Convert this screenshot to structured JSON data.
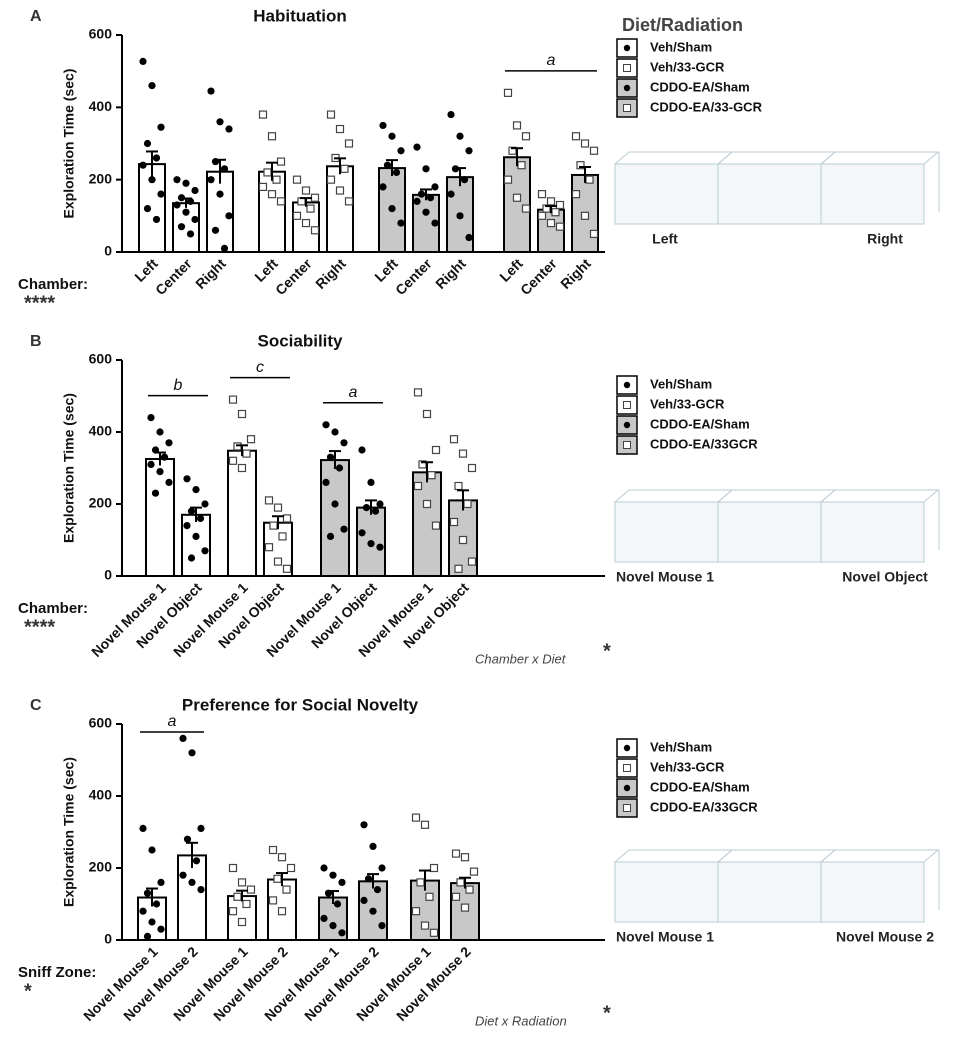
{
  "chart_data": [
    {
      "type": "bar",
      "panel": "A",
      "title": "Habituation",
      "ylabel": "Exploration Time (sec)",
      "ylim": [
        0,
        600
      ],
      "yticks": [
        0,
        200,
        400,
        600
      ],
      "factor": "Chamber:",
      "factor_stars": "****",
      "legend_title": "Diet/Radiation",
      "categories": [
        "Left",
        "Center",
        "Right"
      ],
      "diagram_labels": [
        "Left",
        "Right"
      ],
      "series": [
        {
          "name": "Veh/Sham",
          "color": "#ffffff",
          "marker": "circle",
          "values": [
            243,
            135,
            222
          ],
          "errors": [
            35,
            13,
            33
          ],
          "points": [
            [
              527,
              460,
              345,
              300,
              260,
              240,
              200,
              160,
              120,
              90
            ],
            [
              200,
              190,
              170,
              150,
              140,
              130,
              110,
              90,
              70,
              50
            ],
            [
              445,
              360,
              340,
              250,
              230,
              200,
              160,
              100,
              60,
              10
            ]
          ]
        },
        {
          "name": "Veh/33-GCR",
          "color": "#ffffff",
          "marker": "square",
          "values": [
            222,
            137,
            237
          ],
          "errors": [
            25,
            12,
            22
          ],
          "points": [
            [
              380,
              320,
              250,
              220,
              200,
              180,
              160,
              140
            ],
            [
              200,
              170,
              150,
              140,
              120,
              100,
              80,
              60
            ],
            [
              380,
              340,
              300,
              260,
              230,
              200,
              170,
              140
            ]
          ]
        },
        {
          "name": "CDDO-EA/Sham",
          "color": "#c8c8c8",
          "marker": "circle",
          "values": [
            232,
            158,
            207
          ],
          "errors": [
            22,
            15,
            25
          ],
          "points": [
            [
              350,
              320,
              280,
              240,
              220,
              180,
              120,
              80
            ],
            [
              290,
              230,
              180,
              160,
              150,
              140,
              110,
              80
            ],
            [
              380,
              320,
              280,
              230,
              200,
              160,
              100,
              40
            ]
          ]
        },
        {
          "name": "CDDO-EA/33-GCR",
          "color": "#c8c8c8",
          "marker": "square",
          "values": [
            262,
            117,
            213
          ],
          "errors": [
            25,
            10,
            22
          ],
          "sig": "a",
          "points": [
            [
              440,
              350,
              320,
              280,
              240,
              200,
              150,
              120
            ],
            [
              160,
              140,
              130,
              120,
              110,
              100,
              80,
              70
            ],
            [
              320,
              300,
              280,
              240,
              200,
              160,
              100,
              50
            ]
          ]
        }
      ]
    },
    {
      "type": "bar",
      "panel": "B",
      "title": "Sociability",
      "ylabel": "Exploration Time (sec)",
      "ylim": [
        0,
        600
      ],
      "yticks": [
        0,
        200,
        400,
        600
      ],
      "factor": "Chamber:",
      "factor_stars": "****",
      "interaction": {
        "text": "Chamber x Diet",
        "stars": "*"
      },
      "categories": [
        "Novel Mouse 1",
        "Novel Object"
      ],
      "diagram_labels": [
        "Novel Mouse 1",
        "Novel Object"
      ],
      "series": [
        {
          "name": "Veh/Sham",
          "color": "#ffffff",
          "marker": "circle",
          "values": [
            325,
            170
          ],
          "errors": [
            18,
            20
          ],
          "sig": "b",
          "points": [
            [
              440,
              400,
              370,
              350,
              330,
              310,
              290,
              260,
              230
            ],
            [
              270,
              240,
              200,
              180,
              160,
              140,
              110,
              70,
              50
            ]
          ]
        },
        {
          "name": "Veh/33-GCR",
          "color": "#ffffff",
          "marker": "square",
          "values": [
            348,
            148
          ],
          "errors": [
            15,
            18
          ],
          "sig": "c",
          "points": [
            [
              490,
              450,
              380,
              360,
              340,
              320,
              300
            ],
            [
              210,
              190,
              160,
              140,
              110,
              80,
              40,
              20
            ]
          ]
        },
        {
          "name": "CDDO-EA/Sham",
          "color": "#c8c8c8",
          "marker": "circle",
          "values": [
            322,
            190
          ],
          "errors": [
            25,
            20
          ],
          "sig": "a",
          "points": [
            [
              420,
              400,
              370,
              330,
              300,
              260,
              200,
              130,
              110
            ],
            [
              350,
              260,
              200,
              190,
              180,
              120,
              90,
              80
            ]
          ]
        },
        {
          "name": "CDDO-EA/33GCR",
          "color": "#c8c8c8",
          "marker": "square",
          "values": [
            288,
            210
          ],
          "errors": [
            28,
            28
          ],
          "points": [
            [
              510,
              450,
              350,
              310,
              280,
              250,
              200,
              140
            ],
            [
              380,
              340,
              300,
              250,
              200,
              150,
              100,
              40,
              20
            ]
          ]
        }
      ]
    },
    {
      "type": "bar",
      "panel": "C",
      "title": "Preference for Social Novelty",
      "ylabel": "Exploration Time (sec)",
      "ylim": [
        0,
        600
      ],
      "yticks": [
        0,
        200,
        400,
        600
      ],
      "factor": "Sniff Zone:",
      "factor_stars": "*",
      "interaction": {
        "text": "Diet x Radiation",
        "stars": "*"
      },
      "categories": [
        "Novel Mouse 1",
        "Novel Mouse 2"
      ],
      "diagram_labels": [
        "Novel Mouse 1",
        "Novel Mouse 2"
      ],
      "series": [
        {
          "name": "Veh/Sham",
          "color": "#ffffff",
          "marker": "circle",
          "values": [
            118,
            235
          ],
          "errors": [
            25,
            35
          ],
          "sig": "a",
          "points": [
            [
              310,
              250,
              160,
              130,
              100,
              80,
              50,
              30,
              10
            ],
            [
              560,
              520,
              310,
              280,
              220,
              180,
              160,
              140
            ]
          ]
        },
        {
          "name": "Veh/33-GCR",
          "color": "#ffffff",
          "marker": "square",
          "values": [
            122,
            168
          ],
          "errors": [
            15,
            18
          ],
          "points": [
            [
              200,
              160,
              140,
              120,
              100,
              80,
              50
            ],
            [
              250,
              230,
              200,
              170,
              140,
              110,
              80
            ]
          ]
        },
        {
          "name": "CDDO-EA/Sham",
          "color": "#c8c8c8",
          "marker": "circle",
          "values": [
            118,
            163
          ],
          "errors": [
            18,
            20
          ],
          "points": [
            [
              200,
              180,
              160,
              130,
              100,
              60,
              40,
              20
            ],
            [
              320,
              260,
              200,
              170,
              140,
              110,
              80,
              40
            ]
          ]
        },
        {
          "name": "CDDO-EA/33GCR",
          "color": "#c8c8c8",
          "marker": "square",
          "values": [
            165,
            158
          ],
          "errors": [
            28,
            15
          ],
          "points": [
            [
              340,
              320,
              200,
              160,
              120,
              80,
              40,
              20
            ],
            [
              240,
              230,
              190,
              160,
              140,
              120,
              90
            ]
          ]
        }
      ]
    }
  ]
}
